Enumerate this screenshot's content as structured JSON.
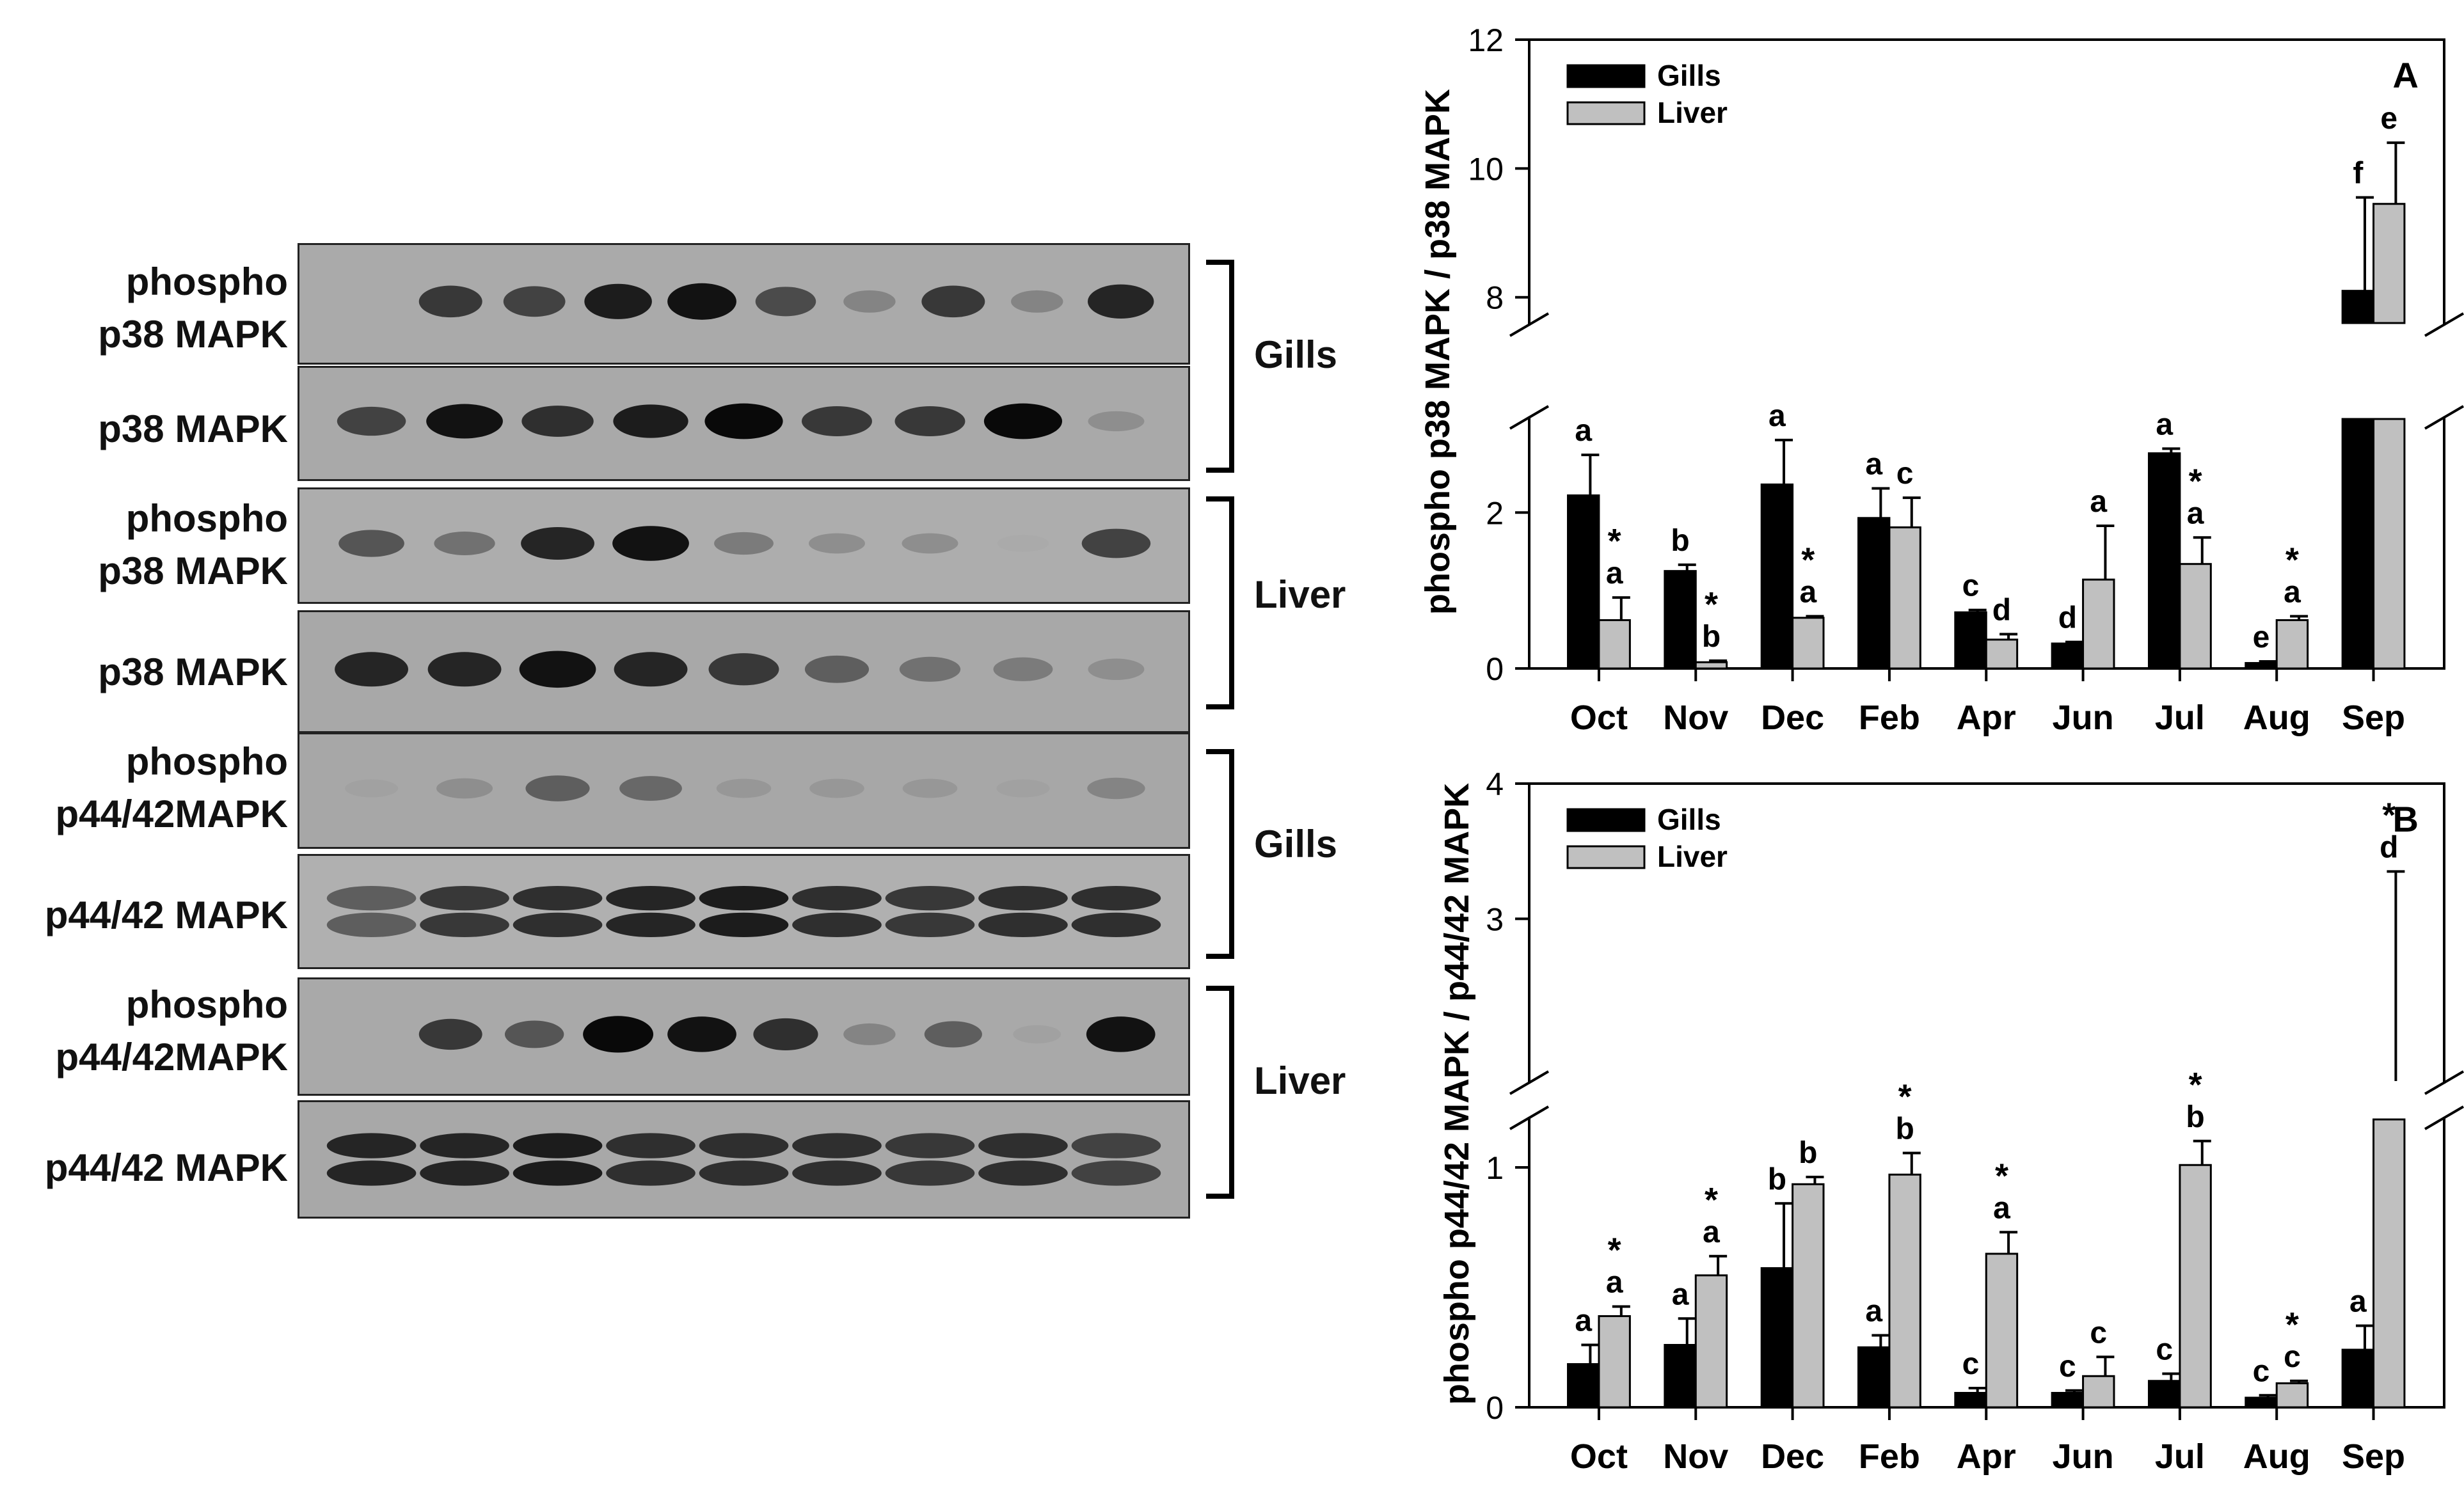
{
  "blot": {
    "panels": [
      {
        "label_line1": "phospho",
        "label_line2": "p38 MAPK",
        "bg": "#aaaaaa",
        "bands": [
          0,
          0.75,
          0.7,
          0.9,
          0.95,
          0.65,
          0.35,
          0.75,
          0.35,
          0.85
        ]
      },
      {
        "label_line1": "",
        "label_line2": "p38 MAPK",
        "bg": "#a9a9a9",
        "bands": [
          0.7,
          0.95,
          0.8,
          0.9,
          1.0,
          0.75,
          0.75,
          1.0,
          0.3
        ]
      },
      {
        "label_line1": "phospho",
        "label_line2": "p38 MAPK",
        "bg": "#adadad",
        "bands": [
          0.6,
          0.45,
          0.85,
          0.95,
          0.4,
          0.3,
          0.3,
          0.15,
          0.7
        ]
      },
      {
        "label_line1": "",
        "label_line2": "p38 MAPK",
        "bg": "#a8a8a8",
        "bands": [
          0.85,
          0.85,
          0.95,
          0.85,
          0.75,
          0.55,
          0.45,
          0.4,
          0.3
        ]
      },
      {
        "label_line1": "phospho",
        "label_line2": "p44/42MAPK",
        "bg": "#a7a7a7",
        "bands": [
          0.2,
          0.3,
          0.55,
          0.5,
          0.25,
          0.25,
          0.25,
          0.2,
          0.35
        ]
      },
      {
        "label_line1": "",
        "label_line2": "p44/42 MAPK",
        "bg": "#b0b0b0",
        "bands": [
          0.55,
          0.75,
          0.8,
          0.85,
          0.9,
          0.8,
          0.75,
          0.8,
          0.8
        ]
      },
      {
        "label_line1": "phospho",
        "label_line2": "p44/42MAPK",
        "bg": "#a9a9a9",
        "bands": [
          0,
          0.75,
          0.6,
          1.0,
          0.95,
          0.8,
          0.35,
          0.55,
          0.2,
          0.95
        ]
      },
      {
        "label_line1": "",
        "label_line2": "p44/42 MAPK",
        "bg": "#a8a8a8",
        "bands": [
          0.85,
          0.85,
          0.9,
          0.8,
          0.8,
          0.8,
          0.75,
          0.8,
          0.7
        ]
      }
    ],
    "tissue_labels": [
      "Gills",
      "Liver",
      "Gills",
      "Liver"
    ]
  },
  "colors": {
    "gills": "#000000",
    "liver": "#c0c0c0"
  },
  "chart_data": [
    {
      "type": "bar",
      "panel_letter": "A",
      "ylabel": "phospho p38 MAPK / p38 MAPK",
      "categories": [
        "Oct",
        "Nov",
        "Dec",
        "Feb",
        "Apr",
        "Jun",
        "Jul",
        "Aug",
        "Sep"
      ],
      "series": [
        {
          "name": "Gills",
          "values": [
            2.22,
            1.25,
            2.36,
            1.93,
            0.72,
            0.32,
            2.76,
            0.07,
            8.1
          ],
          "errors": [
            0.52,
            0.08,
            0.57,
            0.38,
            0.03,
            0.02,
            0.06,
            0.02,
            1.45
          ],
          "letters": [
            "a",
            "b",
            "a",
            "a",
            "c",
            "d",
            "a",
            "e",
            "f"
          ],
          "asterisk": [
            false,
            false,
            false,
            false,
            false,
            false,
            false,
            false,
            false
          ]
        },
        {
          "name": "Liver",
          "values": [
            0.62,
            0.08,
            0.65,
            1.81,
            0.37,
            1.14,
            1.34,
            0.62,
            9.45
          ],
          "errors": [
            0.29,
            0.02,
            0.02,
            0.38,
            0.07,
            0.69,
            0.34,
            0.05,
            0.95
          ],
          "letters": [
            "a",
            "b",
            "a",
            "c",
            "d",
            "a",
            "a",
            "a",
            "e"
          ],
          "asterisk": [
            true,
            true,
            true,
            false,
            false,
            false,
            true,
            true,
            false
          ]
        }
      ],
      "y_axis": {
        "ticks": [
          "0",
          "2",
          "8",
          "10",
          "12"
        ],
        "broken": true,
        "lower_range": [
          0,
          3.2
        ],
        "upper_range": [
          7.6,
          12
        ]
      },
      "legend": "top-left"
    },
    {
      "type": "bar",
      "panel_letter": "B",
      "ylabel": "phospho p44/42 MAPK / p44/42 MAPK",
      "categories": [
        "Oct",
        "Nov",
        "Dec",
        "Feb",
        "Apr",
        "Jun",
        "Jul",
        "Aug",
        "Sep"
      ],
      "series": [
        {
          "name": "Gills",
          "values": [
            0.18,
            0.26,
            0.58,
            0.25,
            0.06,
            0.06,
            0.11,
            0.04,
            0.24
          ],
          "errors": [
            0.08,
            0.11,
            0.27,
            0.05,
            0.02,
            0.01,
            0.03,
            0.01,
            0.1
          ],
          "letters": [
            "a",
            "a",
            "b",
            "a",
            "c",
            "c",
            "c",
            "c",
            "a"
          ],
          "asterisk": [
            false,
            false,
            false,
            false,
            false,
            false,
            false,
            false,
            false
          ]
        },
        {
          "name": "Liver",
          "values": [
            0.38,
            0.55,
            0.93,
            0.97,
            0.64,
            0.13,
            1.01,
            0.1,
            1.8
          ],
          "errors": [
            0.04,
            0.08,
            0.03,
            0.09,
            0.09,
            0.08,
            0.1,
            0.01,
            1.55
          ],
          "letters": [
            "a",
            "a",
            "b",
            "b",
            "a",
            "c",
            "b",
            "c",
            "d"
          ],
          "asterisk": [
            true,
            true,
            false,
            true,
            true,
            false,
            true,
            true,
            true
          ]
        }
      ],
      "y_axis": {
        "ticks": [
          "0",
          "1",
          "3",
          "4"
        ],
        "broken": true,
        "lower_range": [
          0,
          1.2
        ],
        "upper_range": [
          1.8,
          4
        ]
      },
      "legend": "top-left"
    }
  ]
}
